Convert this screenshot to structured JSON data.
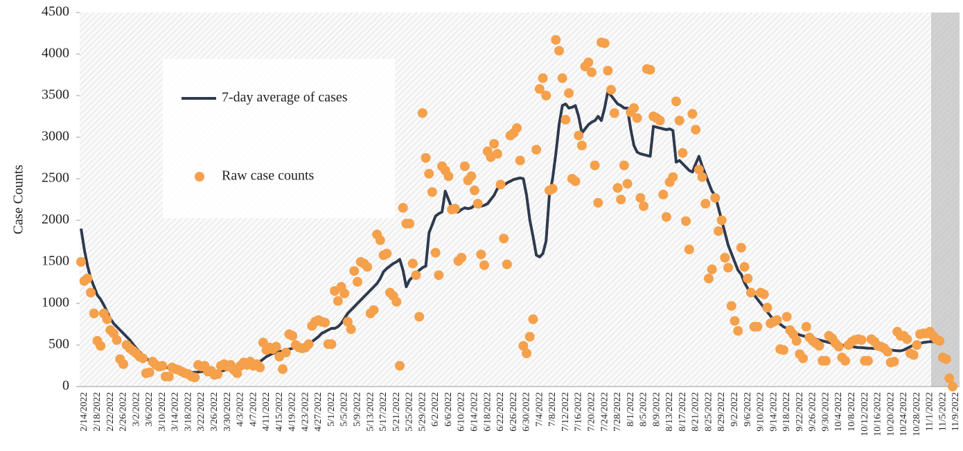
{
  "chart_data": {
    "type": "line-scatter",
    "ylabel": "Case Counts",
    "ylim": [
      0,
      4500
    ],
    "yticks": [
      0,
      500,
      1000,
      1500,
      2000,
      2500,
      3000,
      3500,
      4000,
      4500
    ],
    "categories": [
      "2/14/2022",
      null,
      null,
      null,
      "2/18/2022",
      null,
      null,
      null,
      "2/22/2022",
      null,
      null,
      null,
      "2/26/2022",
      null,
      null,
      null,
      "3/2/2022",
      null,
      null,
      null,
      "3/6/2022",
      null,
      null,
      null,
      "3/10/2022",
      null,
      null,
      null,
      "3/14/2022",
      null,
      null,
      null,
      "3/18/2022",
      null,
      null,
      null,
      "3/22/2022",
      null,
      null,
      null,
      "3/26/2022",
      null,
      null,
      null,
      "3/30/2022",
      null,
      null,
      null,
      "4/3/2022",
      null,
      null,
      null,
      "4/7/2022",
      null,
      null,
      null,
      "4/11/2022",
      null,
      null,
      null,
      "4/15/2022",
      null,
      null,
      null,
      "4/19/2022",
      null,
      null,
      null,
      "4/23/2022",
      null,
      null,
      null,
      "4/27/2022",
      null,
      null,
      null,
      "5/1/2022",
      null,
      null,
      null,
      "5/5/2022",
      null,
      null,
      null,
      "5/9/2022",
      null,
      null,
      null,
      "5/13/2022",
      null,
      null,
      null,
      "5/17/2022",
      null,
      null,
      null,
      "5/21/2022",
      null,
      null,
      null,
      "5/25/2022",
      null,
      null,
      null,
      "5/29/2022",
      null,
      null,
      null,
      "6/2/2022",
      null,
      null,
      null,
      "6/6/2022",
      null,
      null,
      null,
      "6/10/2022",
      null,
      null,
      null,
      "6/14/2022",
      null,
      null,
      null,
      "6/18/2022",
      null,
      null,
      null,
      "6/22/2022",
      null,
      null,
      null,
      "6/26/2022",
      null,
      null,
      null,
      "6/30/2022",
      null,
      null,
      null,
      "7/4/2022",
      null,
      null,
      null,
      "7/8/2022",
      null,
      null,
      null,
      "7/12/2022",
      null,
      null,
      null,
      "7/16/2022",
      null,
      null,
      null,
      "7/20/2022",
      null,
      null,
      null,
      "7/24/2022",
      null,
      null,
      null,
      "7/28/2022",
      null,
      null,
      null,
      "8/1/2022",
      null,
      null,
      null,
      "8/5/2022",
      null,
      null,
      null,
      "8/9/2022",
      null,
      null,
      null,
      "8/13/2022",
      null,
      null,
      null,
      "8/17/2022",
      null,
      null,
      null,
      "8/21/2022",
      null,
      null,
      null,
      "8/25/2022",
      null,
      null,
      null,
      "8/29/2022",
      null,
      null,
      null,
      "9/2/2022",
      null,
      null,
      null,
      "9/6/2022",
      null,
      null,
      null,
      "9/10/2022",
      null,
      null,
      null,
      "9/14/2022",
      null,
      null,
      null,
      "9/18/2022",
      null,
      null,
      null,
      "9/22/2022",
      null,
      null,
      null,
      "9/26/2022",
      null,
      null,
      null,
      "9/30/2022",
      null,
      null,
      null,
      "10/4/2022",
      null,
      null,
      null,
      "10/8/2022",
      null,
      null,
      null,
      "10/12/2022",
      null,
      null,
      null,
      "10/16/2022",
      null,
      null,
      null,
      "10/20/2022",
      null,
      null,
      null,
      "10/24/2022",
      null,
      null,
      null,
      "10/28/2022",
      null,
      null,
      null,
      "11/1/2022",
      null,
      null,
      null,
      "11/5/2022",
      null,
      null,
      null,
      "11/9/2022"
    ],
    "series": [
      {
        "name": "7-day average of cases",
        "kind": "line",
        "color": "#2e3a4e",
        "values": [
          1900,
          1650,
          1450,
          1300,
          1200,
          1100,
          1050,
          980,
          900,
          820,
          760,
          720,
          680,
          640,
          600,
          560,
          510,
          460,
          420,
          380,
          340,
          310,
          290,
          270,
          260,
          250,
          240,
          220,
          210,
          200,
          195,
          190,
          180,
          175,
          170,
          170,
          175,
          180,
          185,
          185,
          180,
          175,
          175,
          185,
          195,
          205,
          210,
          220,
          225,
          230,
          240,
          250,
          260,
          270,
          280,
          300,
          330,
          360,
          380,
          400,
          410,
          420,
          430,
          440,
          450,
          460,
          470,
          480,
          490,
          500,
          520,
          540,
          570,
          600,
          640,
          660,
          680,
          700,
          700,
          720,
          760,
          820,
          880,
          920,
          960,
          1000,
          1040,
          1080,
          1120,
          1160,
          1200,
          1240,
          1300,
          1380,
          1420,
          1450,
          1480,
          1500,
          1530,
          1400,
          1200,
          1280,
          1320,
          1360,
          1400,
          1430,
          1450,
          1850,
          1950,
          2050,
          2080,
          2100,
          2350,
          2250,
          2150,
          2100,
          2100,
          2130,
          2150,
          2140,
          2150,
          2180,
          2160,
          2170,
          2180,
          2200,
          2250,
          2300,
          2380,
          2400,
          2420,
          2450,
          2470,
          2490,
          2500,
          2510,
          2500,
          2300,
          2000,
          1800,
          1580,
          1560,
          1600,
          1750,
          2300,
          2500,
          2800,
          3150,
          3380,
          3400,
          3350,
          3360,
          3380,
          3250,
          3050,
          3100,
          3150,
          3180,
          3200,
          3250,
          3200,
          3350,
          3550,
          3500,
          3450,
          3400,
          3380,
          3350,
          3350,
          3100,
          2900,
          2820,
          2800,
          2790,
          2780,
          2770,
          3130,
          3120,
          3110,
          3100,
          3090,
          3100,
          3080,
          2700,
          2720,
          2680,
          2640,
          2600,
          2580,
          2680,
          2770,
          2650,
          2550,
          2450,
          2350,
          2300,
          2150,
          2000,
          1850,
          1700,
          1600,
          1500,
          1400,
          1350,
          1250,
          1180,
          1120,
          1100,
          1050,
          1000,
          950,
          900,
          850,
          800,
          770,
          750,
          720,
          700,
          680,
          660,
          640,
          620,
          610,
          600,
          590,
          580,
          570,
          560,
          550,
          540,
          530,
          520,
          510,
          505,
          500,
          490,
          485,
          480,
          475,
          470,
          468,
          465,
          462,
          460,
          458,
          455,
          452,
          450,
          445,
          440,
          435,
          430,
          430,
          440,
          460,
          480,
          500,
          510,
          520,
          530,
          535,
          540,
          540,
          540,
          null,
          null,
          null,
          null,
          null
        ]
      },
      {
        "name": "Raw case counts",
        "kind": "scatter",
        "color": "#f5a04b",
        "values": [
          1500,
          1270,
          1300,
          1130,
          880,
          550,
          490,
          880,
          810,
          680,
          640,
          560,
          330,
          270,
          500,
          460,
          430,
          400,
          360,
          340,
          160,
          170,
          300,
          260,
          240,
          250,
          120,
          120,
          230,
          210,
          200,
          180,
          160,
          150,
          120,
          110,
          260,
          240,
          250,
          180,
          190,
          140,
          150,
          250,
          270,
          240,
          260,
          200,
          160,
          250,
          290,
          260,
          300,
          250,
          270,
          230,
          530,
          440,
          470,
          450,
          480,
          360,
          210,
          410,
          630,
          610,
          500,
          470,
          460,
          470,
          510,
          730,
          780,
          800,
          780,
          770,
          510,
          510,
          1150,
          1030,
          1200,
          1120,
          780,
          690,
          1390,
          1260,
          1500,
          1480,
          1440,
          880,
          920,
          1830,
          1760,
          1580,
          1600,
          1130,
          1090,
          1020,
          250,
          2150,
          1960,
          1960,
          1480,
          1340,
          840,
          3290,
          2750,
          2560,
          2340,
          1610,
          1340,
          2650,
          2600,
          2530,
          2130,
          2140,
          1510,
          1550,
          2650,
          2480,
          2530,
          2360,
          2200,
          1590,
          1460,
          2830,
          2760,
          2920,
          2800,
          2430,
          1780,
          1470,
          3020,
          3050,
          3110,
          2720,
          490,
          400,
          600,
          810,
          2850,
          3580,
          3710,
          3500,
          2360,
          2380,
          4170,
          4040,
          3710,
          3210,
          3530,
          2500,
          2470,
          3020,
          2900,
          3850,
          3900,
          3780,
          2660,
          2210,
          4140,
          4130,
          3800,
          3570,
          3290,
          2390,
          2250,
          2660,
          2440,
          3300,
          3350,
          3230,
          2270,
          2170,
          3820,
          3810,
          3250,
          3230,
          3200,
          2310,
          2040,
          2460,
          2520,
          3430,
          3200,
          2810,
          1990,
          1650,
          3280,
          3090,
          2610,
          2520,
          2200,
          1300,
          1410,
          2270,
          1870,
          2000,
          1550,
          1430,
          970,
          790,
          670,
          1670,
          1440,
          1300,
          1130,
          720,
          720,
          1130,
          1110,
          950,
          760,
          780,
          800,
          450,
          440,
          840,
          680,
          630,
          550,
          390,
          340,
          720,
          590,
          550,
          520,
          490,
          310,
          310,
          610,
          580,
          520,
          480,
          350,
          310,
          500,
          540,
          560,
          570,
          560,
          310,
          310,
          570,
          540,
          490,
          480,
          460,
          420,
          290,
          300,
          660,
          610,
          610,
          570,
          400,
          380,
          500,
          630,
          640,
          640,
          660,
          610,
          570,
          550,
          350,
          330,
          100,
          0
        ]
      }
    ]
  }
}
